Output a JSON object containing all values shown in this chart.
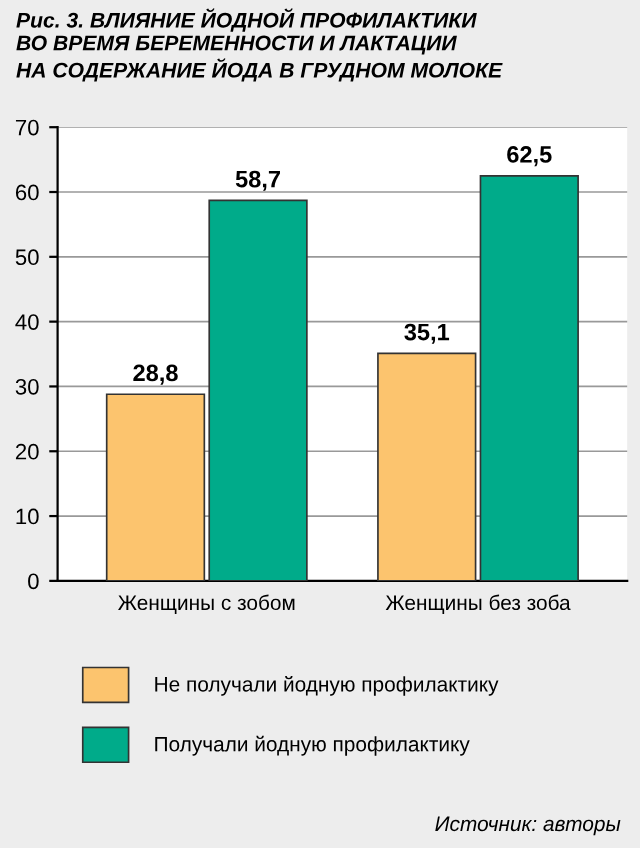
{
  "chart_data": {
    "type": "bar",
    "title": "Рис. 3. ВЛИЯНИЕ ЙОДНОЙ ПРОФИЛАКТИКИ\nВО ВРЕМЯ БЕРЕМЕННОСТИ И ЛАКТАЦИИ\nНА СОДЕРЖАНИЕ ЙОДА В ГРУДНОМ МОЛОКЕ",
    "categories": [
      "Женщины с зобом",
      "Женщины без зоба"
    ],
    "series": [
      {
        "name": "Не получали йодную профилактику",
        "color": "#fcc46e",
        "values": [
          28.8,
          35.1
        ],
        "value_labels": [
          "28,8",
          "35,1"
        ]
      },
      {
        "name": "Получали йодную профилактику",
        "color": "#00ab8a",
        "values": [
          58.7,
          62.5
        ],
        "value_labels": [
          "58,7",
          "62,5"
        ]
      }
    ],
    "ylim": [
      0,
      70
    ],
    "yticks": [
      0,
      10,
      20,
      30,
      40,
      50,
      60,
      70
    ],
    "grid": "y",
    "legend": "bottom",
    "annotations": [
      "Источник: авторы"
    ]
  }
}
